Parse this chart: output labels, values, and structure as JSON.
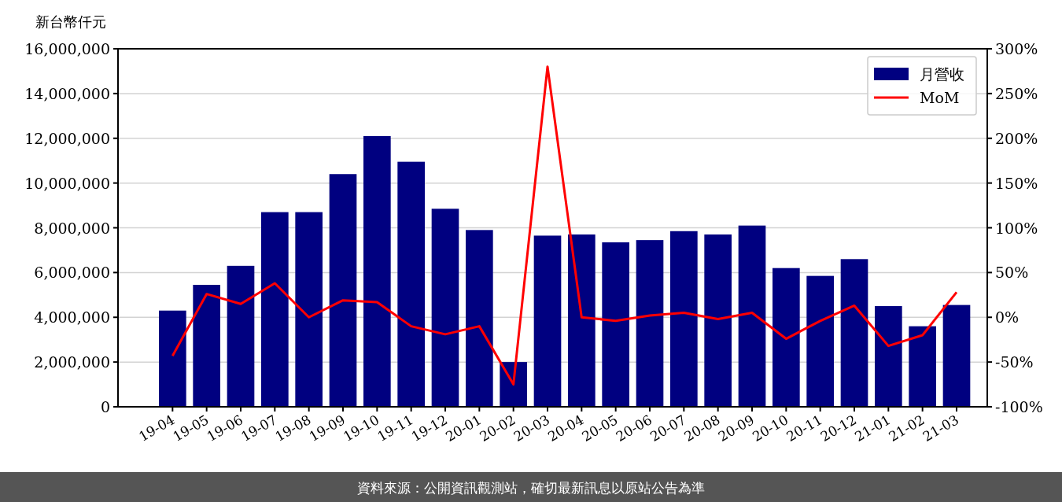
{
  "chart_data": {
    "type": "bar",
    "ylabel": "新台幣仟元",
    "categories": [
      "19-04",
      "19-05",
      "19-06",
      "19-07",
      "19-08",
      "19-09",
      "19-10",
      "19-11",
      "19-12",
      "20-01",
      "20-02",
      "20-03",
      "20-04",
      "20-05",
      "20-06",
      "20-07",
      "20-08",
      "20-09",
      "20-10",
      "20-11",
      "20-12",
      "21-01",
      "21-02",
      "21-03"
    ],
    "series": [
      {
        "name": "月營收",
        "color": "#000080",
        "values": [
          4300000,
          5450000,
          6300000,
          8700000,
          8700000,
          10400000,
          12100000,
          10950000,
          8850000,
          7900000,
          2000000,
          7650000,
          7700000,
          7350000,
          7450000,
          7850000,
          7700000,
          8100000,
          6200000,
          5850000,
          6600000,
          4500000,
          3600000,
          4550000
        ]
      },
      {
        "name": "MoM",
        "type": "line",
        "axis": "y2",
        "color": "#ff0000",
        "values": [
          -43,
          26,
          15,
          38,
          0,
          19,
          17,
          -10,
          -19,
          -10,
          -75,
          280,
          0,
          -4,
          2,
          5,
          -2,
          5,
          -24,
          -4,
          13,
          -32,
          -20,
          28
        ]
      }
    ],
    "ylim": [
      0,
      16000000
    ],
    "yticks": [
      {
        "value": 0,
        "label": "0"
      },
      {
        "value": 2000000,
        "label": "2,000,000"
      },
      {
        "value": 4000000,
        "label": "4,000,000"
      },
      {
        "value": 6000000,
        "label": "6,000,000"
      },
      {
        "value": 8000000,
        "label": "8,000,000"
      },
      {
        "value": 10000000,
        "label": "10,000,000"
      },
      {
        "value": 12000000,
        "label": "12,000,000"
      },
      {
        "value": 14000000,
        "label": "14,000,000"
      },
      {
        "value": 16000000,
        "label": "16,000,000"
      }
    ],
    "y2lim": [
      -100,
      300
    ],
    "y2ticks": [
      {
        "value": -100,
        "label": "-100%"
      },
      {
        "value": -50,
        "label": "-50%"
      },
      {
        "value": 0,
        "label": "0%"
      },
      {
        "value": 50,
        "label": "50%"
      },
      {
        "value": 100,
        "label": "100%"
      },
      {
        "value": 150,
        "label": "150%"
      },
      {
        "value": 200,
        "label": "200%"
      },
      {
        "value": 250,
        "label": "250%"
      },
      {
        "value": 300,
        "label": "300%"
      }
    ],
    "grid": "y",
    "legend": "top right",
    "marker": "none",
    "line_style": "solid",
    "annotations": [
      "資料來源：公開資訊觀測站，確切最新訊息以原站公告為準"
    ]
  }
}
